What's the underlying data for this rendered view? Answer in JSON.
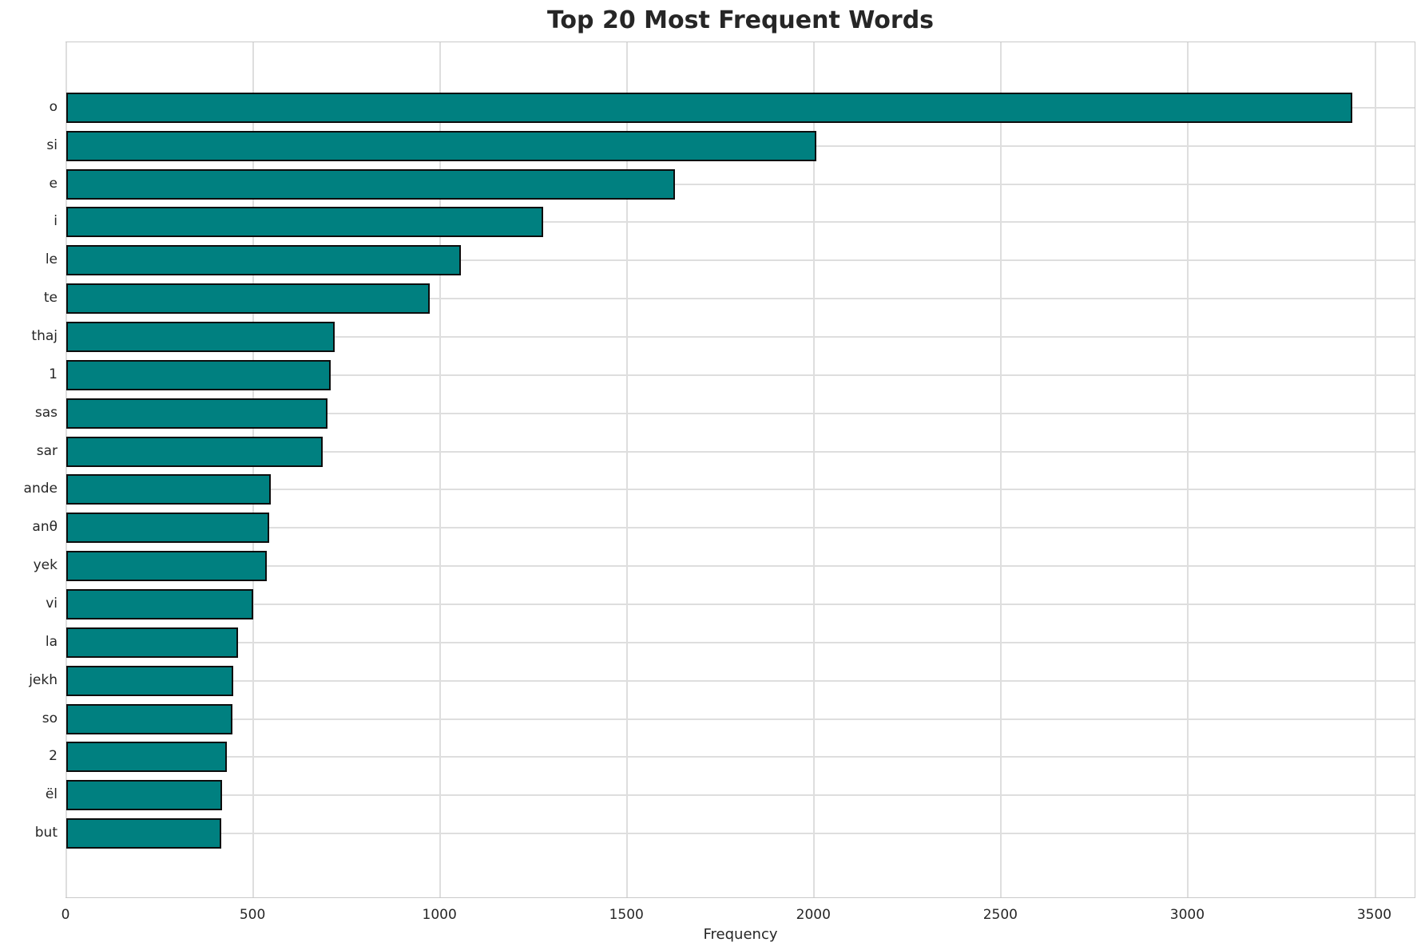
{
  "chart_data": {
    "type": "bar",
    "orientation": "horizontal",
    "title": "Top 20 Most Frequent Words",
    "xlabel": "Frequency",
    "ylabel": "",
    "categories": [
      "o",
      "si",
      "e",
      "i",
      "le",
      "te",
      "thaj",
      "1",
      "sas",
      "sar",
      "ande",
      "anθ",
      "yek",
      "vi",
      "la",
      "jekh",
      "so",
      "2",
      "ël",
      "but"
    ],
    "values": [
      3440,
      2005,
      1628,
      1275,
      1056,
      972,
      718,
      708,
      698,
      686,
      546,
      543,
      536,
      500,
      459,
      447,
      444,
      430,
      417,
      415
    ],
    "xlim": [
      0,
      3610
    ],
    "xticks": [
      0,
      500,
      1000,
      1500,
      2000,
      2500,
      3000,
      3500
    ],
    "grid": true,
    "legend": "none",
    "bar_color": "#008080",
    "bar_edge_color": "#0d0d0d",
    "gridline_color": "#dedede",
    "text_color": "#262626"
  }
}
